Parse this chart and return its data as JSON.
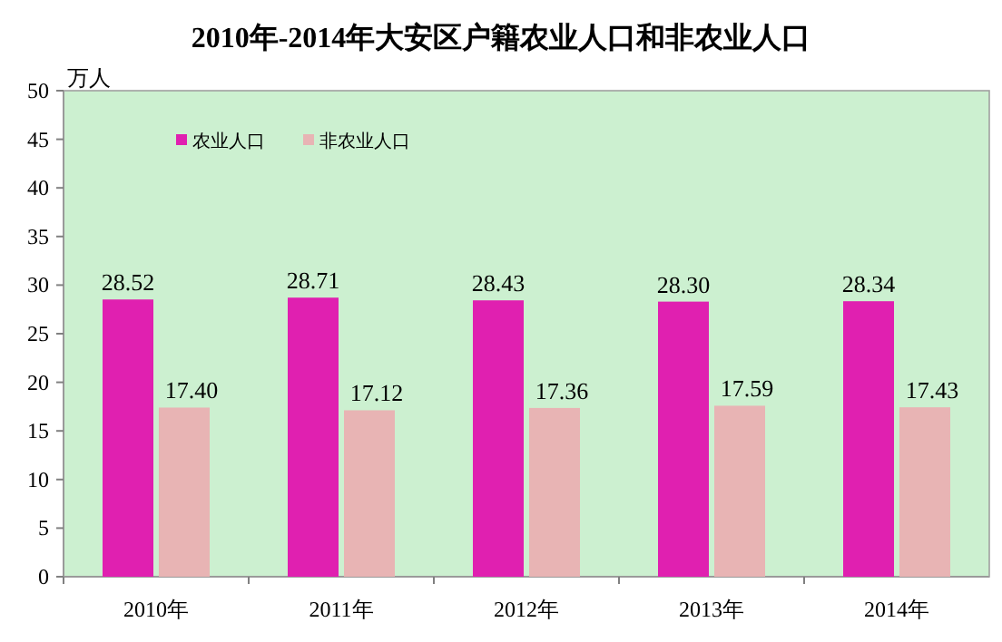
{
  "chart_data": {
    "type": "bar",
    "title": "2010年-2014年大安区户籍农业人口和非农业人口",
    "ylabel": "万人",
    "categories": [
      "2010年",
      "2011年",
      "2012年",
      "2013年",
      "2014年"
    ],
    "series": [
      {
        "name": "农业人口",
        "color": "#e020b0",
        "values": [
          28.52,
          28.71,
          28.43,
          28.3,
          28.34
        ],
        "value_labels": [
          "28.52",
          "28.71",
          "28.43",
          "28.30",
          "28.34"
        ]
      },
      {
        "name": "非农业人口",
        "color": "#e8b4b4",
        "values": [
          17.4,
          17.12,
          17.36,
          17.59,
          17.43
        ],
        "value_labels": [
          "17.40",
          "17.12",
          "17.36",
          "17.59",
          "17.43"
        ]
      }
    ],
    "ylim": [
      0,
      50
    ],
    "yticks": [
      0,
      5,
      10,
      15,
      20,
      25,
      30,
      35,
      40,
      45,
      50
    ],
    "legend": "top left"
  }
}
